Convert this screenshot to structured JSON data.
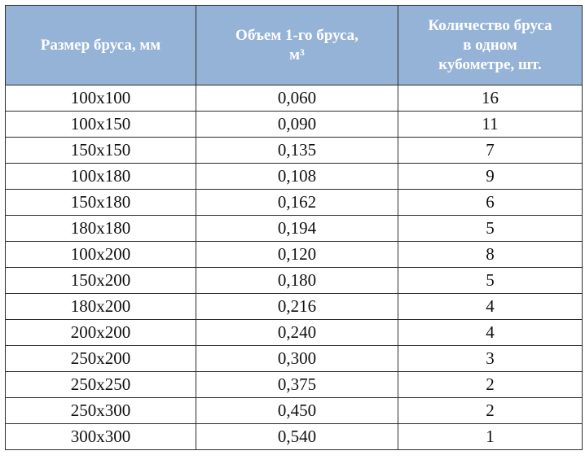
{
  "table": {
    "headers": [
      [
        "Размер бруса, мм"
      ],
      [
        "Объем 1-го бруса,",
        "м³"
      ],
      [
        "Количество бруса",
        "в одном",
        "кубометре, шт."
      ]
    ],
    "rows": [
      [
        "100x100",
        "0,060",
        "16"
      ],
      [
        "100x150",
        "0,090",
        "11"
      ],
      [
        "150x150",
        "0,135",
        "7"
      ],
      [
        "100x180",
        "0,108",
        "9"
      ],
      [
        "150x180",
        "0,162",
        "6"
      ],
      [
        "180x180",
        "0,194",
        "5"
      ],
      [
        "100x200",
        "0,120",
        "8"
      ],
      [
        "150x200",
        "0,180",
        "5"
      ],
      [
        "180x200",
        "0,216",
        "4"
      ],
      [
        "200x200",
        "0,240",
        "4"
      ],
      [
        "250x200",
        "0,300",
        "3"
      ],
      [
        "250x250",
        "0,375",
        "2"
      ],
      [
        "250x300",
        "0,450",
        "2"
      ],
      [
        "300x300",
        "0,540",
        "1"
      ]
    ]
  },
  "colors": {
    "header_background": "#95b3d7",
    "header_text": "#ffffff",
    "border": "#2b2b2b"
  }
}
